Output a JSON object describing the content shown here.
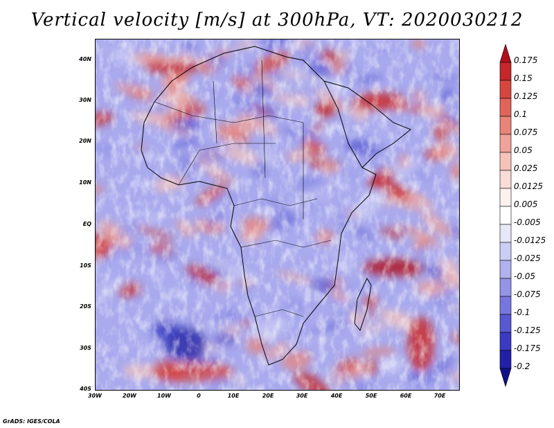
{
  "title": "Vertical velocity [m/s] at 300hPa, VT: 2020030212",
  "latitude_labels": [
    "40N",
    "30N",
    "20N",
    "10N",
    "EQ",
    "10S",
    "20S",
    "30S",
    "40S"
  ],
  "longitude_labels": [
    "30W",
    "20W",
    "10W",
    "0",
    "10E",
    "20E",
    "30E",
    "40E",
    "50E",
    "60E",
    "70E"
  ],
  "colorbar": {
    "labels": [
      "0.175",
      "0.15",
      "0.125",
      "0.1",
      "0.075",
      "0.05",
      "0.025",
      "0.0125",
      "0.005",
      "-0.005",
      "-0.0125",
      "-0.025",
      "-0.05",
      "-0.075",
      "-0.1",
      "-0.125",
      "-0.175",
      "-0.2"
    ],
    "colors": [
      "#b0101a",
      "#c5262a",
      "#d6463f",
      "#e0645a",
      "#e98478",
      "#f0a399",
      "#f6c2ba",
      "#fadcd6",
      "#fdf1ef",
      "#ffffff",
      "#e7e7fa",
      "#cccdf4",
      "#b0b1ee",
      "#9394e6",
      "#7677de",
      "#5758d2",
      "#3a3bc2",
      "#2020a8",
      "#10108a"
    ]
  },
  "footer": "GrADS: IGES/COLA"
}
